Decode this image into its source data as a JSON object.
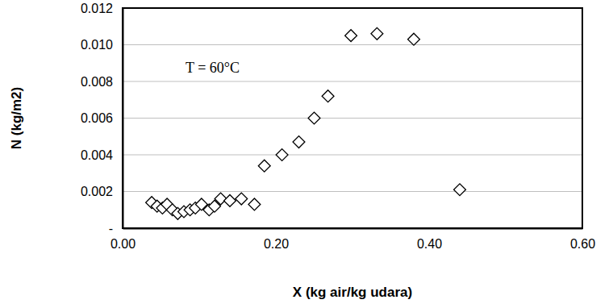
{
  "chart_data": {
    "type": "scatter",
    "x_label": "X (kg air/kg udara)",
    "y_label": "N (kg/m2)",
    "annotations": [
      "T = 60°C"
    ],
    "x": [
      0.038,
      0.045,
      0.052,
      0.058,
      0.065,
      0.072,
      0.08,
      0.088,
      0.095,
      0.103,
      0.113,
      0.12,
      0.128,
      0.14,
      0.155,
      0.172,
      0.185,
      0.208,
      0.23,
      0.25,
      0.268,
      0.298,
      0.332,
      0.38,
      0.44
    ],
    "values": [
      0.0014,
      0.0012,
      0.0011,
      0.0013,
      0.001,
      0.0008,
      0.0009,
      0.001,
      0.0011,
      0.0013,
      0.001,
      0.0012,
      0.0016,
      0.0015,
      0.0016,
      0.0013,
      0.0034,
      0.004,
      0.0047,
      0.006,
      0.0072,
      0.0105,
      0.0106,
      0.0103,
      0.0021
    ],
    "color": "#000000",
    "marker": "diamond",
    "xlim": [
      0,
      0.6
    ],
    "xticks": [
      {
        "value": 0,
        "label": "0.00"
      },
      {
        "value": 0.2,
        "label": "0.20"
      },
      {
        "value": 0.4,
        "label": "0.40"
      },
      {
        "value": 0.6,
        "label": "0.60"
      }
    ],
    "ylim": [
      0,
      0.012
    ],
    "yticks": [
      {
        "value": 0,
        "label": "-"
      },
      0.002,
      0.004,
      0.006,
      0.008,
      {
        "value": 0.01,
        "label": "0.010"
      },
      0.012
    ],
    "grid": true
  }
}
